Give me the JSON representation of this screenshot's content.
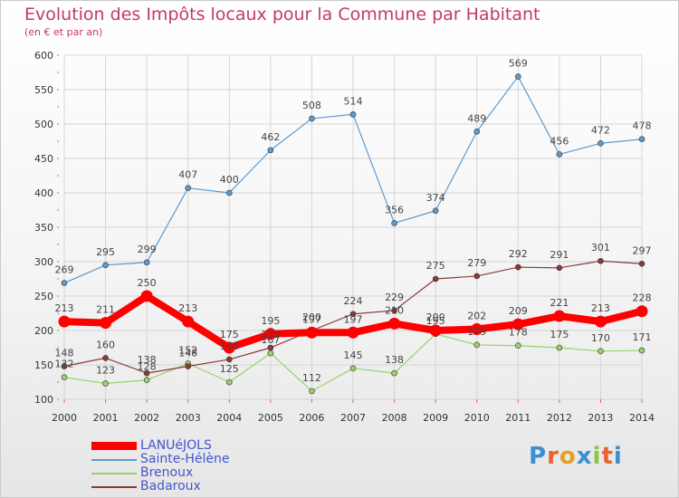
{
  "header": {
    "title": "Evolution des Impôts locaux pour la Commune par Habitant",
    "subtitle": "(en € et par an)"
  },
  "colors": {
    "title": "#c53a5e",
    "legend_text": "#4455cc",
    "grid": "#d5d5d5",
    "axis_text": "#333333",
    "label_text": "#444444"
  },
  "brand": {
    "text": "Proxiti",
    "letter_colors": [
      "#3b8fd1",
      "#e8642c",
      "#e2a122",
      "#3b8fd1",
      "#8cc63f",
      "#e8642c",
      "#3b8fd1"
    ]
  },
  "chart_data": {
    "type": "line",
    "title": "Evolution des Impôts locaux pour la Commune par Habitant",
    "subtitle": "(en € et par an)",
    "xlabel": "",
    "ylabel": "",
    "x": [
      "2000",
      "2001",
      "2002",
      "2003",
      "2004",
      "2005",
      "2006",
      "2007",
      "2008",
      "2009",
      "2010",
      "2011",
      "2012",
      "2013",
      "2014"
    ],
    "ylim": [
      100,
      600
    ],
    "yticks": [
      100,
      150,
      200,
      250,
      300,
      350,
      400,
      450,
      500,
      550,
      600
    ],
    "grid": true,
    "legend_position": "bottom-left",
    "series": [
      {
        "name": "LANUéJOLS",
        "color": "#ff0000",
        "weight": "thick",
        "values": [
          213,
          211,
          250,
          213,
          175,
          195,
          197,
          197,
          210,
          200,
          202,
          209,
          221,
          213,
          228
        ]
      },
      {
        "name": "Sainte-Hélène",
        "color": "#5b9ad0",
        "weight": "thin",
        "values": [
          269,
          295,
          299,
          407,
          400,
          462,
          508,
          514,
          356,
          374,
          489,
          569,
          456,
          472,
          478
        ]
      },
      {
        "name": "Brenoux",
        "color": "#99d16b",
        "weight": "thin",
        "values": [
          132,
          123,
          128,
          152,
          125,
          167,
          112,
          145,
          138,
          195,
          179,
          178,
          175,
          170,
          171
        ]
      },
      {
        "name": "Badaroux",
        "color": "#8b3a3a",
        "weight": "thin",
        "values": [
          148,
          160,
          138,
          148,
          158,
          175,
          200,
          224,
          229,
          275,
          279,
          292,
          291,
          301,
          297
        ]
      }
    ]
  }
}
